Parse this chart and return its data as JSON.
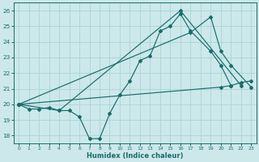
{
  "xlabel": "Humidex (Indice chaleur)",
  "bg_color": "#cce8ea",
  "grid_color": "#aad4d8",
  "line_color": "#1a6b6b",
  "ylim": [
    17.5,
    26.5
  ],
  "xlim": [
    -0.5,
    23.5
  ],
  "yticks": [
    18,
    19,
    20,
    21,
    22,
    23,
    24,
    25,
    26
  ],
  "xticks": [
    0,
    1,
    2,
    3,
    4,
    5,
    6,
    7,
    8,
    9,
    10,
    11,
    12,
    13,
    14,
    15,
    16,
    17,
    18,
    19,
    20,
    21,
    22,
    23
  ],
  "series": [
    {
      "x": [
        0,
        1,
        2,
        3,
        4,
        5,
        6,
        7,
        8,
        9,
        10,
        11,
        12,
        13,
        14,
        15,
        16,
        17,
        19,
        20,
        21
      ],
      "y": [
        20,
        19.7,
        19.7,
        19.8,
        19.6,
        19.6,
        19.2,
        17.8,
        17.8,
        19.4,
        20.6,
        21.5,
        22.8,
        23.1,
        24.7,
        25.0,
        25.8,
        24.7,
        23.4,
        22.5,
        21.2
      ]
    },
    {
      "x": [
        0,
        4,
        16,
        22
      ],
      "y": [
        20,
        19.6,
        26.0,
        21.2
      ]
    },
    {
      "x": [
        0,
        17,
        19,
        20,
        21,
        23
      ],
      "y": [
        20,
        24.6,
        25.6,
        23.4,
        22.5,
        21.1
      ]
    },
    {
      "x": [
        0,
        20,
        21,
        22,
        23
      ],
      "y": [
        20,
        21.1,
        21.2,
        21.4,
        21.5
      ]
    }
  ]
}
